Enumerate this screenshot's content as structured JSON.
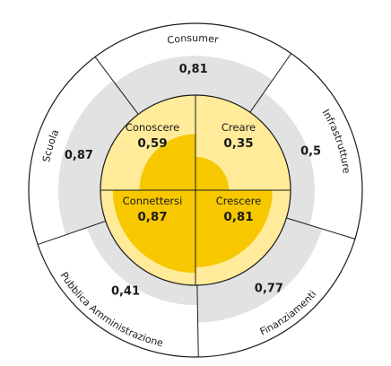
{
  "chart_data": {
    "type": "radial-bar",
    "title": "",
    "outer_ring": {
      "scale_max": 1,
      "sectors": [
        {
          "label": "Consumer",
          "value": 0.81,
          "display": "0,81"
        },
        {
          "label": "Infrastrutture",
          "value": 0.5,
          "display": "0,5"
        },
        {
          "label": "Finanziamenti",
          "value": 0.77,
          "display": "0,77"
        },
        {
          "label": "Pubblica Amministrazione",
          "value": 0.41,
          "display": "0,41"
        },
        {
          "label": "Scuola",
          "value": 0.87,
          "display": "0,87"
        }
      ]
    },
    "inner_circle": {
      "scale_max": 1,
      "quadrants": [
        {
          "label": "Conoscere",
          "value": 0.59,
          "display": "0,59"
        },
        {
          "label": "Creare",
          "value": 0.35,
          "display": "0,35"
        },
        {
          "label": "Crescere",
          "value": 0.81,
          "display": "0,81"
        },
        {
          "label": "Connettersi",
          "value": 0.87,
          "display": "0,87"
        }
      ]
    },
    "colors": {
      "outer_fill": "#e2e2e2",
      "inner_background": "#ffeb99",
      "inner_fill": "#f7c800",
      "ring_outline": "#1a1a1a"
    }
  }
}
